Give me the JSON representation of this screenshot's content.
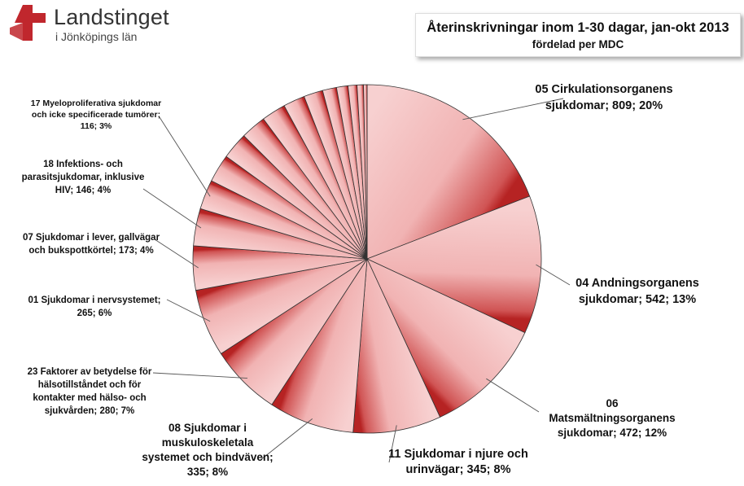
{
  "logo": {
    "name": "Landstinget",
    "sub": "i Jönköpings län",
    "accent": "#c0272d"
  },
  "title": {
    "main": "Återinskrivningar inom 1-30 dagar, jan-okt 2013",
    "sub": "fördelad per MDC"
  },
  "chart_data": {
    "type": "pie",
    "start_at": "top, clockwise",
    "slices": [
      {
        "name": "05 Cirkulationsorganens sjukdomar",
        "value": 809,
        "percent": 20,
        "label_lines": [
          "05 Cirkulationsorganens",
          "sjukdomar; 809; 20%"
        ]
      },
      {
        "name": "04 Andningsorganens sjukdomar",
        "value": 542,
        "percent": 13,
        "label_lines": [
          "04 Andningsorganens",
          "sjukdomar; 542; 13%"
        ]
      },
      {
        "name": "06 Matsmältningsorganens sjukdomar",
        "value": 472,
        "percent": 12,
        "label_lines": [
          "06",
          "Matsmältningsorganens",
          "sjukdomar; 472; 12%"
        ]
      },
      {
        "name": "11 Sjukdomar i njure och urinvägar",
        "value": 345,
        "percent": 8,
        "label_lines": [
          "11 Sjukdomar i njure och",
          "urinvägar; 345; 8%"
        ]
      },
      {
        "name": "08 Sjukdomar i muskuloskeletala systemet och bindväven",
        "value": 335,
        "percent": 8,
        "label_lines": [
          "08 Sjukdomar i",
          "muskuloskeletala",
          "systemet och bindväven;",
          "335; 8%"
        ]
      },
      {
        "name": "23 Faktorer av betydelse för hälsotillståndet och för kontakter med hälso- och sjukvården",
        "value": 280,
        "percent": 7,
        "label_lines": [
          "23 Faktorer av betydelse för",
          "hälsotillståndet och för",
          "kontakter med hälso- och",
          "sjukvården; 280; 7%"
        ]
      },
      {
        "name": "01 Sjukdomar i nervsystemet",
        "value": 265,
        "percent": 6,
        "label_lines": [
          "01 Sjukdomar i nervsystemet;",
          "265; 6%"
        ]
      },
      {
        "name": "07 Sjukdomar i lever, gallvägar och bukspottkörtel",
        "value": 173,
        "percent": 4,
        "label_lines": [
          "07 Sjukdomar i lever, gallvägar",
          "och bukspottkörtel; 173; 4%"
        ]
      },
      {
        "name": "18 Infektions- och parasitsjukdomar, inklusive HIV",
        "value": 146,
        "percent": 4,
        "label_lines": [
          "18 Infektions- och",
          "parasitsjukdomar, inklusive",
          "HIV; 146; 4%"
        ]
      },
      {
        "name": "17 Myeloproliferativa sjukdomar och icke specificerade tumörer",
        "value": 116,
        "percent": 3,
        "label_lines": [
          "17 Myeloproliferativa sjukdomar",
          "och icke specificerade tumörer;",
          "116; 3%"
        ]
      },
      {
        "name": "",
        "value": 110,
        "label_lines": []
      },
      {
        "name": "",
        "value": 105,
        "label_lines": []
      },
      {
        "name": "",
        "value": 100,
        "label_lines": []
      },
      {
        "name": "",
        "value": 95,
        "label_lines": []
      },
      {
        "name": "",
        "value": 85,
        "label_lines": []
      },
      {
        "name": "",
        "value": 75,
        "label_lines": []
      },
      {
        "name": "",
        "value": 55,
        "label_lines": []
      },
      {
        "name": "",
        "value": 45,
        "label_lines": []
      },
      {
        "name": "",
        "value": 35,
        "label_lines": []
      },
      {
        "name": "",
        "value": 25,
        "label_lines": []
      },
      {
        "name": "",
        "value": 14,
        "label_lines": []
      }
    ],
    "colors": {
      "fill_light": "#f6c9c9",
      "fill_dark": "#bf2a2a",
      "stroke": "#333333",
      "leader": "#555555"
    },
    "legend": "none"
  }
}
